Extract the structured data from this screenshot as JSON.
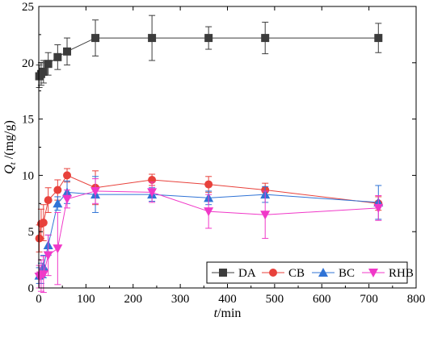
{
  "chart_data": {
    "type": "line",
    "title": "",
    "xlabel_var": "t",
    "xlabel_unit": "/min",
    "ylabel_var": "Q",
    "ylabel_sub": "t",
    "ylabel_unit": " /(mg/g)",
    "xlim": [
      0,
      800
    ],
    "ylim": [
      0,
      25
    ],
    "xticks": [
      0,
      100,
      200,
      300,
      400,
      500,
      600,
      700,
      800
    ],
    "yticks": [
      0,
      5,
      10,
      15,
      20,
      25
    ],
    "grid": false,
    "legend": "bottom-right",
    "series": [
      {
        "name": "DA",
        "color": "#3c3c3c",
        "marker": "square",
        "x": [
          1,
          5,
          10,
          20,
          40,
          60,
          120,
          240,
          360,
          480,
          720
        ],
        "y": [
          18.8,
          19.0,
          19.2,
          19.9,
          20.5,
          21.0,
          22.2,
          22.2,
          22.2,
          22.2,
          22.2
        ],
        "err": [
          1.0,
          1.0,
          1.0,
          1.0,
          1.1,
          1.2,
          1.6,
          2.0,
          1.0,
          1.4,
          1.3
        ]
      },
      {
        "name": "CB",
        "color": "#e8413b",
        "marker": "circle",
        "x": [
          1,
          5,
          10,
          20,
          40,
          60,
          120,
          240,
          360,
          480,
          720
        ],
        "y": [
          4.4,
          5.7,
          5.8,
          7.8,
          8.7,
          10.0,
          8.9,
          9.6,
          9.2,
          8.7,
          7.5
        ],
        "err": [
          1.2,
          1.3,
          1.6,
          1.1,
          0.9,
          0.6,
          1.5,
          0.5,
          0.7,
          0.6,
          0.6
        ]
      },
      {
        "name": "BC",
        "color": "#2f73d6",
        "marker": "triangle-up",
        "x": [
          1,
          5,
          10,
          20,
          40,
          60,
          120,
          240,
          360,
          480,
          720
        ],
        "y": [
          1.1,
          1.3,
          1.9,
          3.8,
          7.5,
          8.5,
          8.3,
          8.3,
          8.0,
          8.3,
          7.6
        ],
        "err": [
          0.7,
          0.9,
          1.0,
          0.9,
          0.6,
          1.0,
          1.6,
          0.6,
          0.6,
          0.7,
          1.5
        ]
      },
      {
        "name": "RHB",
        "color": "#f038c8",
        "marker": "triangle-down",
        "x": [
          1,
          5,
          10,
          20,
          40,
          60,
          120,
          240,
          360,
          480,
          720
        ],
        "y": [
          1.0,
          1.1,
          1.2,
          2.9,
          3.5,
          7.9,
          8.6,
          8.5,
          6.8,
          6.5,
          7.1
        ],
        "err": [
          1.0,
          1.4,
          1.6,
          1.8,
          3.2,
          0.8,
          1.1,
          0.9,
          1.5,
          2.1,
          1.1
        ]
      }
    ]
  }
}
